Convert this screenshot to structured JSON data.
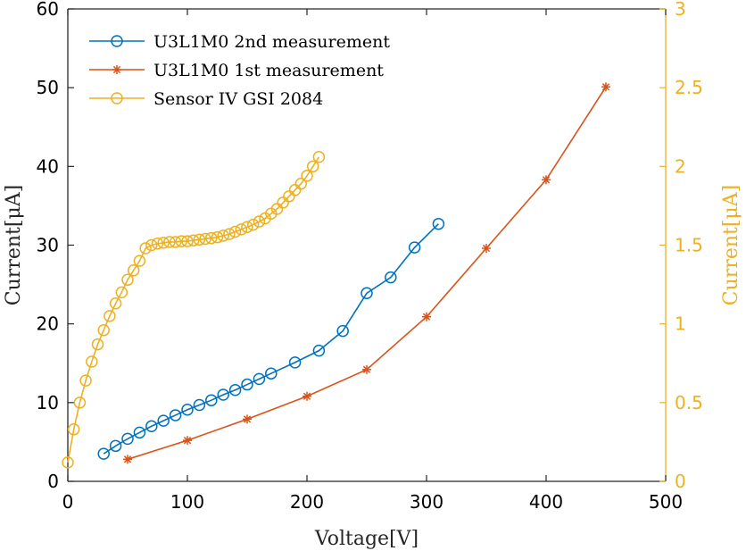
{
  "chart_data": {
    "type": "line",
    "xlabel": "Voltage[V]",
    "ylabel_left": "Current[μA]",
    "ylabel_right": "Current[μA]",
    "xlim": [
      0,
      500
    ],
    "ylim_left": [
      0,
      60
    ],
    "ylim_right": [
      0,
      3
    ],
    "x_ticks": [
      0,
      100,
      200,
      300,
      400,
      500
    ],
    "y_left_ticks": [
      0,
      10,
      20,
      30,
      40,
      50,
      60
    ],
    "y_right_ticks": [
      0,
      0.5,
      1,
      1.5,
      2,
      2.5,
      3
    ],
    "x_tick_labels": [
      "0",
      "100",
      "200",
      "300",
      "400",
      "500"
    ],
    "y_left_tick_labels": [
      "0",
      "10",
      "20",
      "30",
      "40",
      "50",
      "60"
    ],
    "y_right_tick_labels": [
      "0",
      "0.5",
      "1",
      "1.5",
      "2",
      "2.5",
      "3"
    ],
    "grid": false,
    "legend_position": "top-left",
    "colors": {
      "series1": "#0072BD",
      "series2": "#D95319",
      "series3": "#EDB120",
      "axis": "#262626",
      "right_axis": "#EDB120"
    },
    "series": [
      {
        "name": "U3L1M0 2nd measurement",
        "axis": "left",
        "marker": "circle",
        "color": "#0072BD",
        "x": [
          30,
          40,
          50,
          60,
          70,
          80,
          90,
          100,
          110,
          120,
          130,
          140,
          150,
          160,
          170,
          190,
          210,
          230,
          250,
          270,
          290,
          310
        ],
        "y": [
          3.5,
          4.5,
          5.4,
          6.2,
          7.0,
          7.7,
          8.4,
          9.1,
          9.7,
          10.3,
          11.0,
          11.6,
          12.3,
          13.0,
          13.7,
          15.1,
          16.6,
          19.1,
          23.9,
          25.9,
          29.7,
          32.7
        ]
      },
      {
        "name": "U3L1M0 1st measurement",
        "axis": "left",
        "marker": "asterisk",
        "color": "#D95319",
        "x": [
          50,
          100,
          150,
          200,
          250,
          300,
          350,
          400,
          450
        ],
        "y": [
          2.8,
          5.2,
          7.9,
          10.8,
          14.2,
          20.9,
          29.6,
          38.3,
          50.1
        ]
      },
      {
        "name": "Sensor IV GSI 2084",
        "axis": "right",
        "marker": "circle",
        "color": "#EDB120",
        "x": [
          0,
          5,
          10,
          15,
          20,
          25,
          30,
          35,
          40,
          45,
          50,
          55,
          60,
          65,
          70,
          75,
          80,
          85,
          90,
          95,
          100,
          105,
          110,
          115,
          120,
          125,
          130,
          135,
          140,
          145,
          150,
          155,
          160,
          165,
          170,
          175,
          180,
          185,
          190,
          195,
          200,
          205,
          210
        ],
        "y": [
          0.12,
          0.33,
          0.5,
          0.64,
          0.76,
          0.87,
          0.96,
          1.05,
          1.13,
          1.2,
          1.28,
          1.34,
          1.4,
          1.48,
          1.5,
          1.51,
          1.515,
          1.52,
          1.52,
          1.525,
          1.525,
          1.53,
          1.535,
          1.54,
          1.545,
          1.55,
          1.56,
          1.57,
          1.585,
          1.6,
          1.615,
          1.63,
          1.65,
          1.67,
          1.7,
          1.73,
          1.77,
          1.81,
          1.85,
          1.89,
          1.94,
          2.0,
          2.06
        ]
      }
    ]
  }
}
